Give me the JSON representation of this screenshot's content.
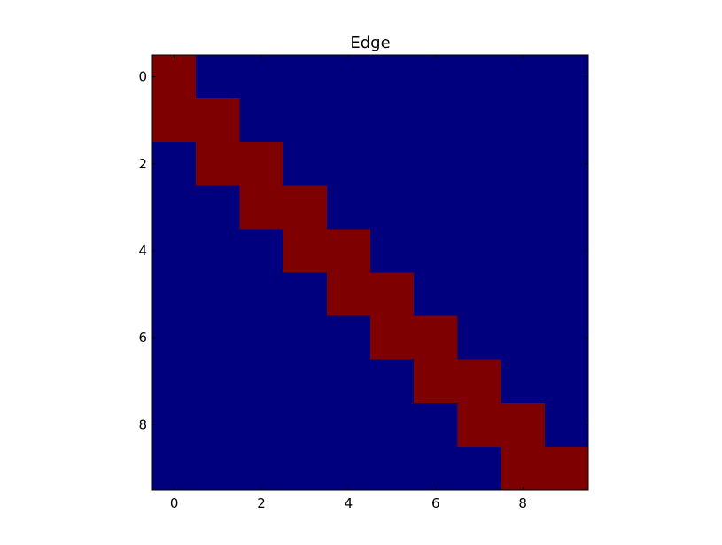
{
  "chart_data": {
    "type": "heatmap",
    "title": "Edge",
    "xlabel": "",
    "ylabel": "",
    "xlim": [
      -0.5,
      9.5
    ],
    "ylim": [
      9.5,
      -0.5
    ],
    "x_ticks": [
      0,
      2,
      4,
      6,
      8
    ],
    "y_ticks": [
      0,
      2,
      4,
      6,
      8
    ],
    "x_tick_labels": [
      "0",
      "2",
      "4",
      "6",
      "8"
    ],
    "y_tick_labels": [
      "0",
      "2",
      "4",
      "6",
      "8"
    ],
    "grid": false,
    "colors": {
      "low": "#00007f",
      "high": "#7f0000"
    },
    "matrix": [
      [
        1,
        0,
        0,
        0,
        0,
        0,
        0,
        0,
        0,
        0
      ],
      [
        1,
        1,
        0,
        0,
        0,
        0,
        0,
        0,
        0,
        0
      ],
      [
        0,
        1,
        1,
        0,
        0,
        0,
        0,
        0,
        0,
        0
      ],
      [
        0,
        0,
        1,
        1,
        0,
        0,
        0,
        0,
        0,
        0
      ],
      [
        0,
        0,
        0,
        1,
        1,
        0,
        0,
        0,
        0,
        0
      ],
      [
        0,
        0,
        0,
        0,
        1,
        1,
        0,
        0,
        0,
        0
      ],
      [
        0,
        0,
        0,
        0,
        0,
        1,
        1,
        0,
        0,
        0
      ],
      [
        0,
        0,
        0,
        0,
        0,
        0,
        1,
        1,
        0,
        0
      ],
      [
        0,
        0,
        0,
        0,
        0,
        0,
        0,
        1,
        1,
        0
      ],
      [
        0,
        0,
        0,
        0,
        0,
        0,
        0,
        0,
        1,
        1
      ]
    ]
  }
}
